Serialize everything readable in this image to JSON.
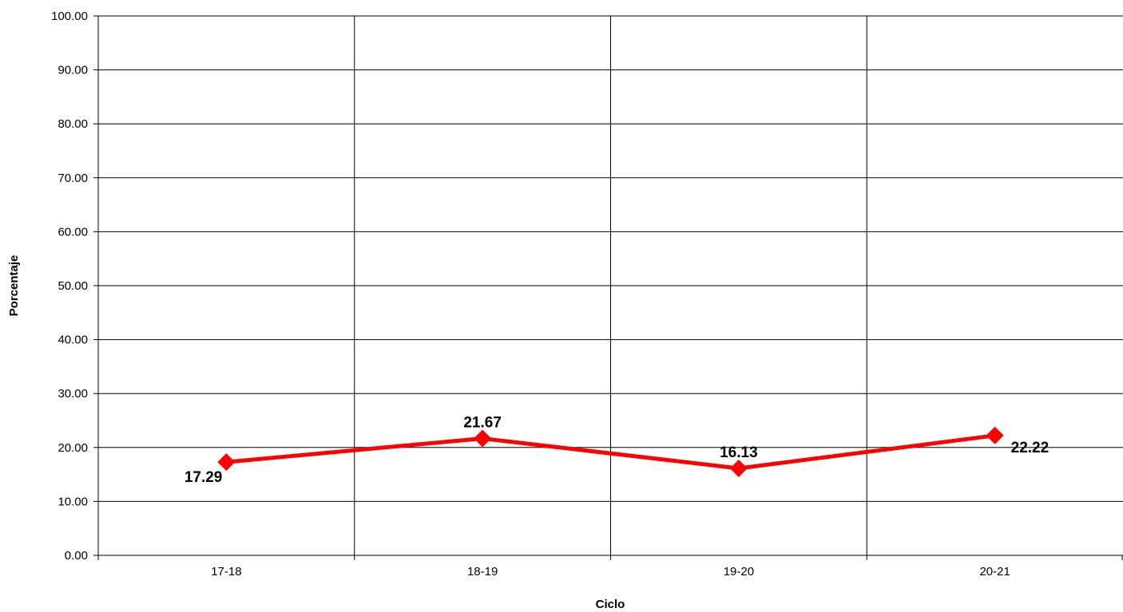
{
  "chart_data": {
    "type": "line",
    "title": "",
    "xlabel": "Ciclo",
    "ylabel": "Porcentaje",
    "categories": [
      "17-18",
      "18-19",
      "19-20",
      "20-21"
    ],
    "series": [
      {
        "values": [
          17.29,
          21.67,
          16.13,
          22.22
        ],
        "data_labels": [
          "17.29",
          "21.67",
          "16.13",
          "22.22"
        ],
        "color": "#ff0000",
        "marker": "diamond"
      }
    ],
    "ylim": [
      0,
      100
    ],
    "y_ticks": [
      0,
      10,
      20,
      30,
      40,
      50,
      60,
      70,
      80,
      90,
      100
    ],
    "y_tick_labels": [
      "0.00",
      "10.00",
      "20.00",
      "30.00",
      "40.00",
      "50.00",
      "60.00",
      "70.00",
      "80.00",
      "90.00",
      "100.00"
    ],
    "grid": true,
    "legend": "none"
  }
}
